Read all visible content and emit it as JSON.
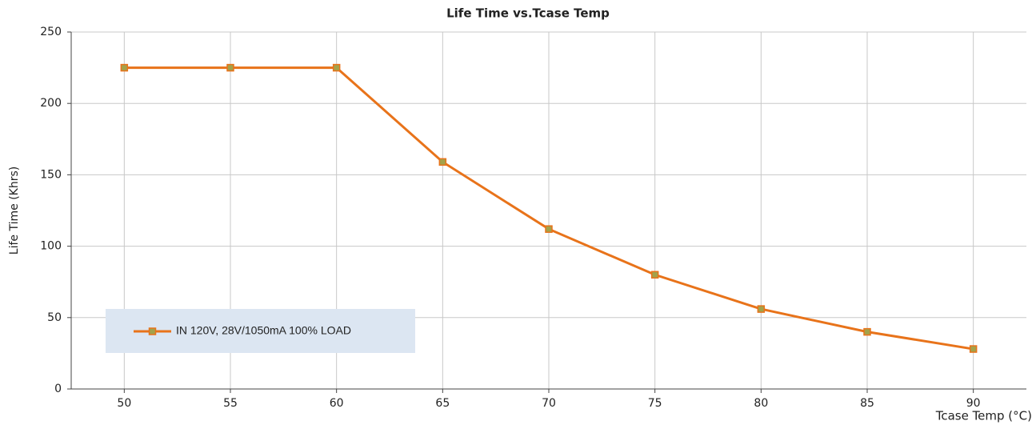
{
  "chart_data": {
    "type": "line",
    "title": "Life Time vs.Tcase Temp",
    "xlabel": "Tcase Temp (°C)",
    "ylabel": "Life Time (Khrs)",
    "x": [
      50,
      55,
      60,
      65,
      70,
      75,
      80,
      85,
      90
    ],
    "series": [
      {
        "name": "IN 120V, 28V/1050mA 100% LOAD",
        "color": "#e8731a",
        "marker_color": "#a4a24a",
        "values": [
          225,
          225,
          225,
          159,
          112,
          80,
          56,
          40,
          28
        ]
      }
    ],
    "xlim": [
      47.5,
      92.5
    ],
    "xticks": [
      50,
      55,
      60,
      65,
      70,
      75,
      80,
      85,
      90
    ],
    "ylim": [
      0,
      250
    ],
    "yticks": [
      0,
      50,
      100,
      150,
      200,
      250
    ],
    "grid": true,
    "legend": "lower left"
  }
}
